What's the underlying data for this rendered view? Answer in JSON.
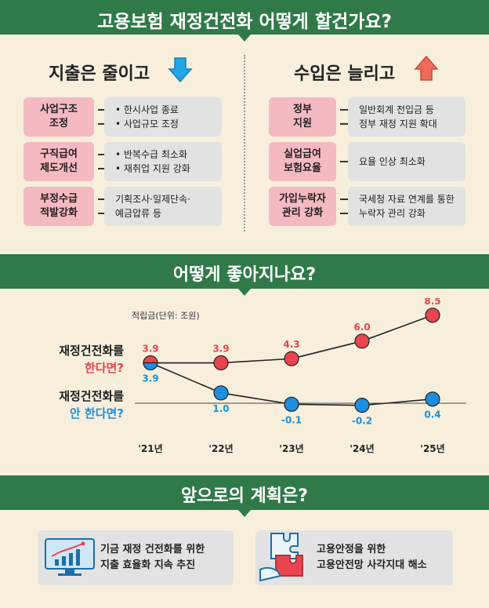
{
  "header": {
    "title": "고용보험 재정건전화 어떻게 할건가요?"
  },
  "expenditure": {
    "heading": "지출은 줄이고",
    "items": [
      {
        "label": "사업구조\n조정",
        "details": [
          "• 한시사업 종료",
          "• 사업규모 조정"
        ]
      },
      {
        "label": "구직급여\n제도개선",
        "details": [
          "• 반복수급 최소화",
          "• 재취업 지원 강화"
        ]
      },
      {
        "label": "부정수급\n적발강화",
        "details": [
          "기획조사·일제단속·",
          "예금압류 등"
        ]
      }
    ]
  },
  "income": {
    "heading": "수입은 늘리고",
    "items": [
      {
        "label": "정부\n지원",
        "details": [
          "일반회계 전입금 등",
          "정부 재정 지원 확대"
        ]
      },
      {
        "label": "실업급여\n보험요율",
        "details": [
          "요율 인상 최소화"
        ]
      },
      {
        "label": "가입누락자\n관리 강화",
        "details": [
          "국세청 자료 연계를 통한",
          "누락자 관리 강화"
        ]
      }
    ]
  },
  "section2": {
    "title": "어떻게 좋아지나요?"
  },
  "chart_data": {
    "type": "line",
    "unit_label": "적립금(단위: 조원)",
    "categories": [
      "'21년",
      "'22년",
      "'23년",
      "'24년",
      "'25년"
    ],
    "series": [
      {
        "name": "재정건전화를 한다면?",
        "values": [
          3.9,
          3.9,
          4.3,
          6.0,
          8.5
        ],
        "color": "#e8454f"
      },
      {
        "name": "재정건전화를 안 한다면?",
        "values": [
          3.9,
          1.0,
          -0.1,
          -0.2,
          0.4
        ],
        "color": "#1a8fe0"
      }
    ],
    "value_labels_a": [
      "3.9",
      "3.9",
      "4.3",
      "6.0",
      "8.5"
    ],
    "value_labels_b": [
      "3.9",
      "1.0",
      "-0.1",
      "-0.2",
      "0.4"
    ]
  },
  "legend": {
    "a_line1": "재정건전화를",
    "a_line2": "한다면?",
    "b_line1": "재정건전화를",
    "b_line2": "안 한다면?"
  },
  "section3": {
    "title": "앞으로의 계획은?"
  },
  "plans": [
    {
      "line1": "기금 재정 건전화를 위한",
      "line2": "지출 효율화 지속 추진"
    },
    {
      "line1": "고용안정을 위한",
      "line2": "고용안전망 사각지대 해소"
    }
  ],
  "colors": {
    "green": "#2f7a48",
    "pink": "#f5b9c1",
    "red": "#e8454f",
    "blue": "#1a8fe0",
    "bg": "#f7efdc"
  }
}
